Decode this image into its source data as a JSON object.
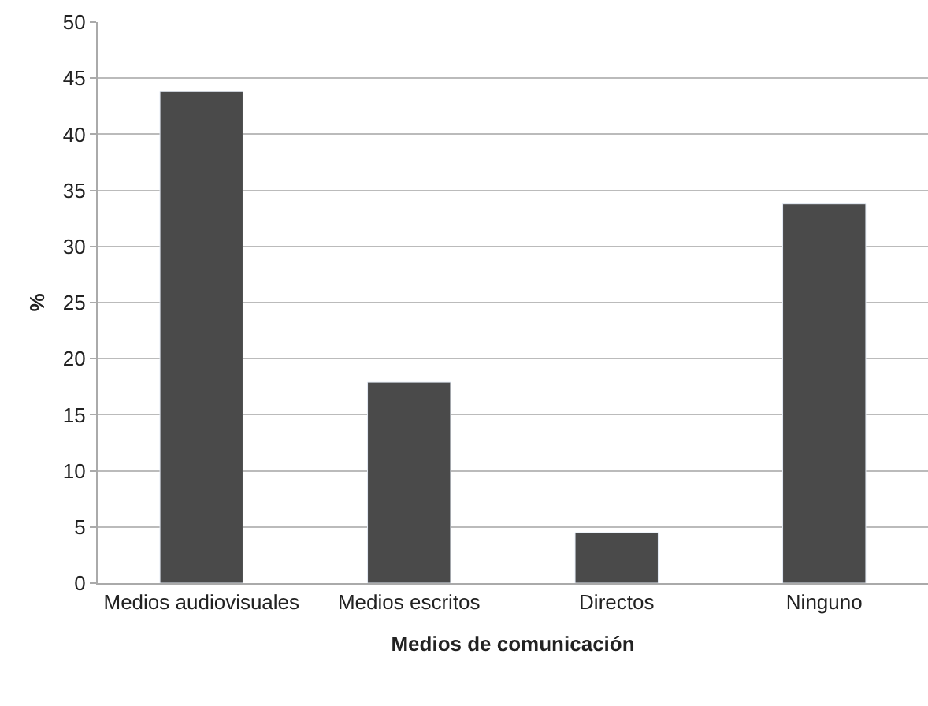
{
  "chart_data": {
    "type": "bar",
    "xlabel": "Medios de comunicación",
    "ylabel": "%",
    "categories": [
      "Medios audiovisuales",
      "Medios escritos",
      "Directos",
      "Ninguno"
    ],
    "values": [
      43.8,
      17.9,
      4.5,
      33.8
    ],
    "color": "#4a4a4a",
    "ylim": [
      0,
      50
    ],
    "yticks": [
      0,
      5,
      10,
      15,
      20,
      25,
      30,
      35,
      40,
      45,
      50
    ],
    "grid": "y",
    "legend": false
  }
}
